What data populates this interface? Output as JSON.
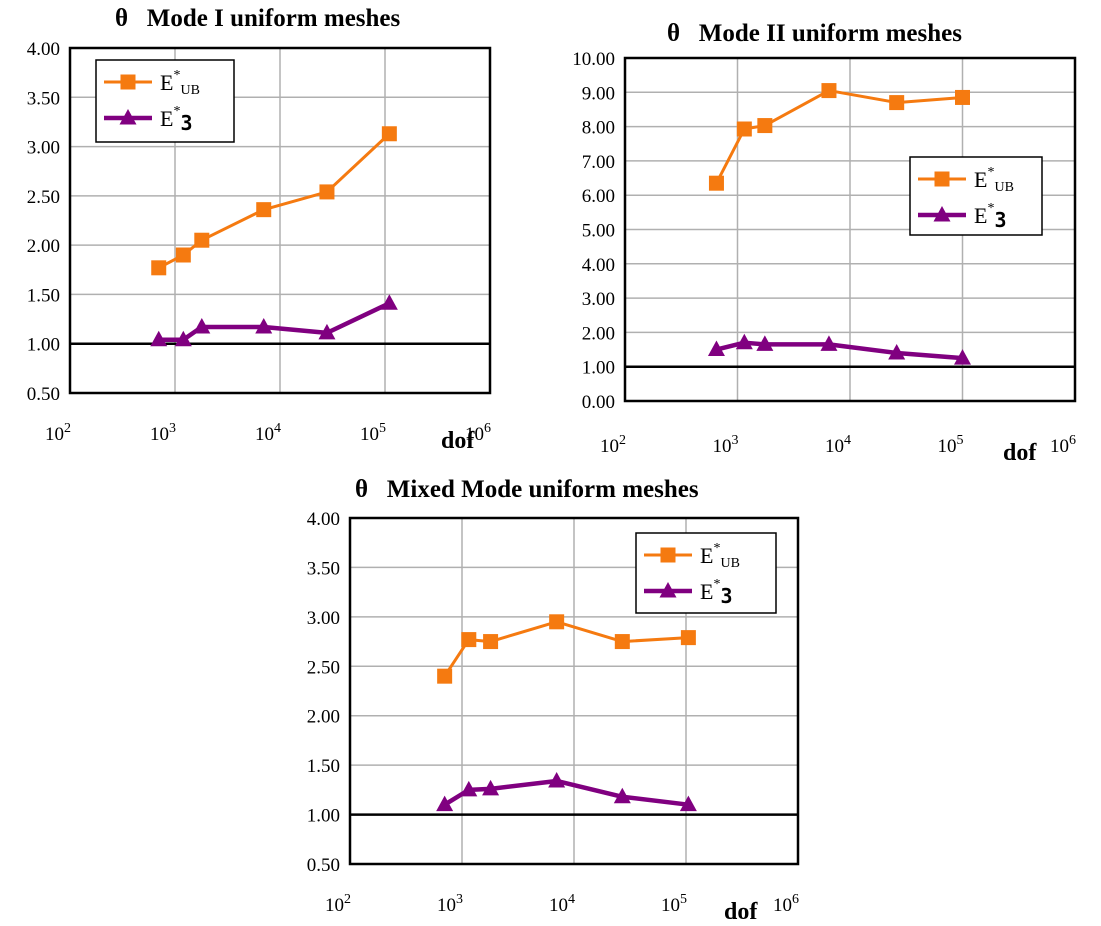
{
  "colors": {
    "ub": "#f57a10",
    "e3": "#800080",
    "grid": "#b0b0b0",
    "ref": "#000000"
  },
  "chart_data": [
    {
      "type": "line",
      "title": "θ   Mode I uniform meshes",
      "xlabel": "dof",
      "ylabel": "",
      "xscale": "log",
      "xlim": [
        100,
        1000000
      ],
      "ylim": [
        0.5,
        4.0
      ],
      "yticks": [
        "0.50",
        "1.00",
        "1.50",
        "2.00",
        "2.50",
        "3.00",
        "3.50",
        "4.00"
      ],
      "xticks": [
        {
          "base": "10",
          "exp": "2"
        },
        {
          "base": "10",
          "exp": "3"
        },
        {
          "base": "10",
          "exp": "4"
        },
        {
          "base": "10",
          "exp": "5"
        },
        {
          "base": "10",
          "exp": "6"
        }
      ],
      "reference_y": 1.0,
      "legend_position": "top-left",
      "series": [
        {
          "name": "E*UB",
          "legend_base": "E",
          "legend_sup": "*",
          "legend_sub": "UB",
          "marker": "square",
          "color": "#f57a10",
          "x": [
            700,
            1200,
            1800,
            7000,
            28000,
            110000
          ],
          "y": [
            1.77,
            1.9,
            2.05,
            2.36,
            2.54,
            3.13
          ]
        },
        {
          "name": "E*3",
          "legend_base": "E",
          "legend_sup": "*",
          "legend_sub": "3",
          "marker": "triangle",
          "color": "#800080",
          "x": [
            700,
            1200,
            1800,
            7000,
            28000,
            110000
          ],
          "y": [
            1.04,
            1.04,
            1.17,
            1.17,
            1.11,
            1.41
          ]
        }
      ]
    },
    {
      "type": "line",
      "title": "θ   Mode II uniform meshes",
      "xlabel": "dof",
      "ylabel": "",
      "xscale": "log",
      "xlim": [
        100,
        1000000
      ],
      "ylim": [
        0.0,
        10.0
      ],
      "yticks": [
        "0.00",
        "1.00",
        "2.00",
        "3.00",
        "4.00",
        "5.00",
        "6.00",
        "7.00",
        "8.00",
        "9.00",
        "10.00"
      ],
      "xticks": [
        {
          "base": "10",
          "exp": "2"
        },
        {
          "base": "10",
          "exp": "3"
        },
        {
          "base": "10",
          "exp": "4"
        },
        {
          "base": "10",
          "exp": "5"
        },
        {
          "base": "10",
          "exp": "6"
        }
      ],
      "reference_y": 1.0,
      "legend_position": "middle-right",
      "series": [
        {
          "name": "E*UB",
          "legend_base": "E",
          "legend_sup": "*",
          "legend_sub": "UB",
          "marker": "square",
          "color": "#f57a10",
          "x": [
            650,
            1150,
            1750,
            6500,
            26000,
            100000
          ],
          "y": [
            6.35,
            7.93,
            8.03,
            9.05,
            8.7,
            8.85
          ]
        },
        {
          "name": "E*3",
          "legend_base": "E",
          "legend_sup": "*",
          "legend_sub": "3",
          "marker": "triangle",
          "color": "#800080",
          "x": [
            650,
            1150,
            1750,
            6500,
            26000,
            100000
          ],
          "y": [
            1.5,
            1.7,
            1.65,
            1.65,
            1.4,
            1.25
          ]
        }
      ]
    },
    {
      "type": "line",
      "title": "θ   Mixed Mode uniform meshes",
      "xlabel": "dof",
      "ylabel": "",
      "xscale": "log",
      "xlim": [
        100,
        1000000
      ],
      "ylim": [
        0.5,
        4.0
      ],
      "yticks": [
        "0.50",
        "1.00",
        "1.50",
        "2.00",
        "2.50",
        "3.00",
        "3.50",
        "4.00"
      ],
      "xticks": [
        {
          "base": "10",
          "exp": "2"
        },
        {
          "base": "10",
          "exp": "3"
        },
        {
          "base": "10",
          "exp": "4"
        },
        {
          "base": "10",
          "exp": "5"
        },
        {
          "base": "10",
          "exp": "6"
        }
      ],
      "reference_y": 1.0,
      "legend_position": "top-right",
      "series": [
        {
          "name": "E*UB",
          "legend_base": "E",
          "legend_sup": "*",
          "legend_sub": "UB",
          "marker": "square",
          "color": "#f57a10",
          "x": [
            700,
            1150,
            1800,
            7000,
            27000,
            105000
          ],
          "y": [
            2.4,
            2.77,
            2.75,
            2.95,
            2.75,
            2.79
          ]
        },
        {
          "name": "E*3",
          "legend_base": "E",
          "legend_sup": "*",
          "legend_sub": "3",
          "marker": "triangle",
          "color": "#800080",
          "x": [
            700,
            1150,
            1800,
            7000,
            27000,
            105000
          ],
          "y": [
            1.1,
            1.25,
            1.26,
            1.34,
            1.18,
            1.1
          ]
        }
      ]
    }
  ]
}
